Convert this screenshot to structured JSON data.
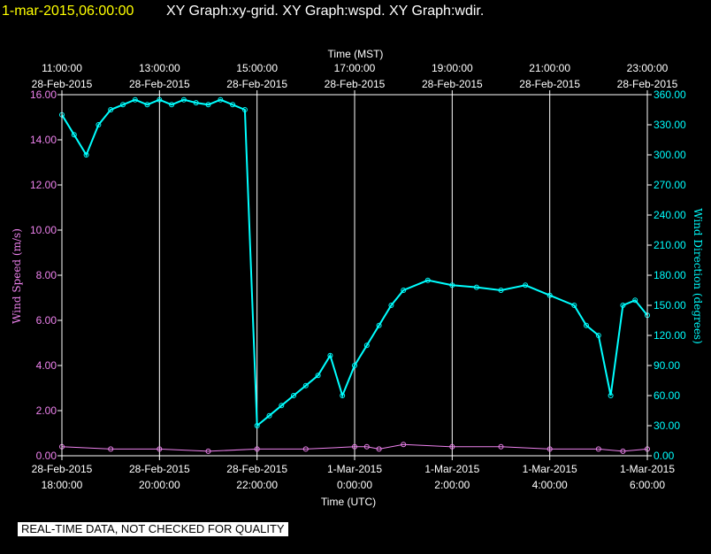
{
  "header": {
    "timestamp": "1-mar-2015,06:00:00",
    "graphs": "XY Graph:xy-grid.  XY Graph:wspd.  XY Graph:wdir."
  },
  "disclaimer": "REAL-TIME DATA, NOT CHECKED FOR QUALITY",
  "colors": {
    "background": "#000000",
    "header_timestamp": "#ffff00",
    "speed_series": "#ee82ee",
    "direction_series": "#00ffff",
    "grid": "#ffffff",
    "text": "#ffffff"
  },
  "chart_data": {
    "type": "scatter",
    "top_axis": {
      "title": "Time (MST)",
      "ticks": [
        {
          "time": "11:00:00",
          "date": "28-Feb-2015"
        },
        {
          "time": "13:00:00",
          "date": "28-Feb-2015"
        },
        {
          "time": "15:00:00",
          "date": "28-Feb-2015"
        },
        {
          "time": "17:00:00",
          "date": "28-Feb-2015"
        },
        {
          "time": "19:00:00",
          "date": "28-Feb-2015"
        },
        {
          "time": "21:00:00",
          "date": "28-Feb-2015"
        },
        {
          "time": "23:00:00",
          "date": "28-Feb-2015"
        }
      ]
    },
    "bottom_axis": {
      "title": "Time (UTC)",
      "ticks": [
        {
          "date": "28-Feb-2015",
          "time": "18:00:00"
        },
        {
          "date": "28-Feb-2015",
          "time": "20:00:00"
        },
        {
          "date": "28-Feb-2015",
          "time": "22:00:00"
        },
        {
          "date": "1-Mar-2015",
          "time": "0:00:00"
        },
        {
          "date": "1-Mar-2015",
          "time": "2:00:00"
        },
        {
          "date": "1-Mar-2015",
          "time": "4:00:00"
        },
        {
          "date": "1-Mar-2015",
          "time": "6:00:00"
        }
      ],
      "range_utc": [
        "2015-02-28 18:00",
        "2015-03-01 06:00"
      ]
    },
    "left_axis": {
      "title": "Wind Speed (m/s)",
      "range": [
        0,
        16
      ],
      "ticks": [
        "0.00",
        "2.00",
        "4.00",
        "6.00",
        "8.00",
        "10.00",
        "12.00",
        "14.00",
        "16.00"
      ]
    },
    "right_axis": {
      "title": "Wind Direction (degrees)",
      "range": [
        0,
        360
      ],
      "ticks": [
        "0.00",
        "30.00",
        "60.00",
        "90.00",
        "120.00",
        "150.00",
        "180.00",
        "210.00",
        "240.00",
        "270.00",
        "300.00",
        "330.00",
        "360.00"
      ]
    },
    "grid": "vertical lines every 2 hours",
    "series": [
      {
        "axis": "left",
        "x_hours_utc_from_start": [
          0,
          1,
          2,
          3,
          4,
          5,
          6,
          6.25,
          6.5,
          7,
          8,
          9,
          10,
          11,
          11.5,
          12
        ],
        "values": [
          0.4,
          0.3,
          0.3,
          0.2,
          0.3,
          0.3,
          0.4,
          0.4,
          0.3,
          0.5,
          0.4,
          0.4,
          0.3,
          0.3,
          0.2,
          0.3
        ]
      },
      {
        "axis": "right",
        "x_hours_utc_from_start": [
          0,
          0.25,
          0.5,
          0.75,
          1,
          1.25,
          1.5,
          1.75,
          2,
          2.25,
          2.5,
          2.75,
          3,
          3.25,
          3.5,
          3.75,
          4,
          4.25,
          4.5,
          4.75,
          5,
          5.25,
          5.5,
          5.75,
          6,
          6.25,
          6.5,
          6.75,
          7,
          7.5,
          8,
          8.5,
          9,
          9.5,
          10,
          10.5,
          10.75,
          11,
          11.25,
          11.5,
          11.75,
          12
        ],
        "values": [
          340,
          320,
          300,
          330,
          345,
          350,
          355,
          350,
          355,
          350,
          355,
          352,
          350,
          355,
          350,
          345,
          30,
          40,
          50,
          60,
          70,
          80,
          100,
          60,
          90,
          110,
          130,
          150,
          165,
          175,
          170,
          168,
          165,
          170,
          160,
          150,
          130,
          120,
          60,
          150,
          155,
          140
        ]
      }
    ]
  }
}
